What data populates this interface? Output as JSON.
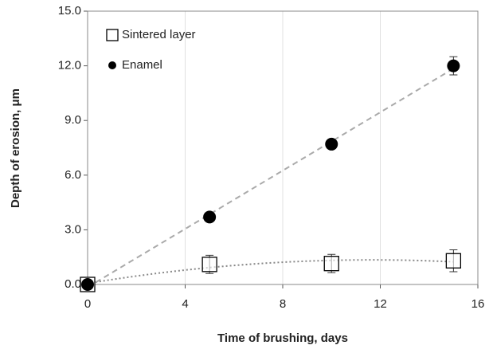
{
  "chart_data": {
    "type": "scatter",
    "xlabel": "Time of brushing, days",
    "ylabel": "Depth of erosion, μm",
    "x": [
      0,
      5,
      10,
      15
    ],
    "series": [
      {
        "name": "Sintered layer",
        "color": "#000000",
        "marker": "square",
        "trend": "poly2",
        "values": [
          0,
          1.1,
          1.15,
          1.3
        ],
        "errors": [
          0.2,
          0.5,
          0.5,
          0.6
        ]
      },
      {
        "name": "Enamel",
        "color": "#000000",
        "marker": "circle",
        "trend": "linear",
        "values": [
          0,
          3.7,
          7.7,
          12.0
        ],
        "errors": [
          0.1,
          0.2,
          0.2,
          0.5
        ]
      }
    ],
    "xlim": [
      0,
      16
    ],
    "xticks": [
      0,
      4,
      8,
      12,
      16
    ],
    "ylim": [
      0,
      15
    ],
    "yticks": [
      {
        "value": 0,
        "label": "0.0"
      },
      {
        "value": 3,
        "label": "3.0"
      },
      {
        "value": 6,
        "label": "6.0"
      },
      {
        "value": 9,
        "label": "9.0"
      },
      {
        "value": 12,
        "label": "12.0"
      },
      {
        "value": 15,
        "label": "15.0"
      }
    ],
    "grid": "x",
    "legend": "upper left"
  }
}
